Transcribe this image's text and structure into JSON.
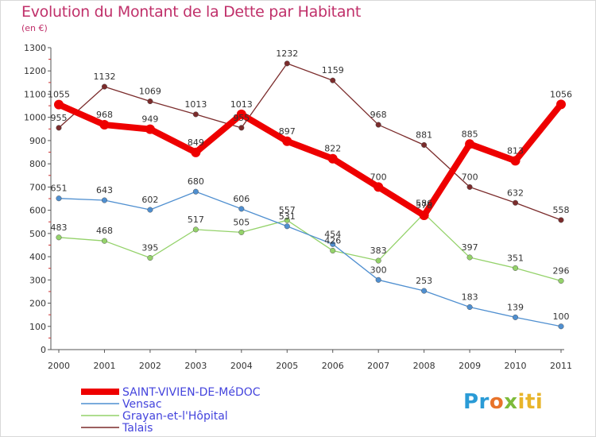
{
  "title": "Evolution du Montant de la Dette par Habitant",
  "subtitle": "(en €)",
  "logo": {
    "part1": "Pr",
    "part2": "o",
    "part3": "x",
    "part4": "iti"
  },
  "chart_data": {
    "type": "line",
    "title": "Evolution du Montant de la Dette par Habitant",
    "ylabel": "(en €)",
    "ylim": [
      0,
      1300
    ],
    "yticks": [
      0,
      100,
      200,
      300,
      400,
      500,
      600,
      700,
      800,
      900,
      1000,
      1100,
      1200,
      1300
    ],
    "x": [
      "2000",
      "2001",
      "2002",
      "2003",
      "2004",
      "2005",
      "2006",
      "2007",
      "2008",
      "2009",
      "2010",
      "2011"
    ],
    "grid": false,
    "legend": "bottom-left",
    "series": [
      {
        "name": "SAINT-VIVIEN-DE-MéDOC",
        "color": "#ee0000",
        "values": [
          1055,
          968,
          949,
          849,
          1013,
          897,
          822,
          700,
          578,
          885,
          813,
          1056
        ]
      },
      {
        "name": "Vensac",
        "color": "#4f8fd0",
        "values": [
          651,
          643,
          602,
          680,
          606,
          531,
          454,
          300,
          253,
          183,
          139,
          100
        ]
      },
      {
        "name": "Grayan-et-l'Hôpital",
        "color": "#94d26a",
        "values": [
          483,
          468,
          395,
          517,
          505,
          557,
          426,
          383,
          586,
          397,
          351,
          296
        ]
      },
      {
        "name": "Talais",
        "color": "#7b2c2c",
        "values": [
          955,
          1132,
          1069,
          1013,
          955,
          1232,
          1159,
          968,
          881,
          700,
          632,
          558
        ]
      }
    ]
  }
}
